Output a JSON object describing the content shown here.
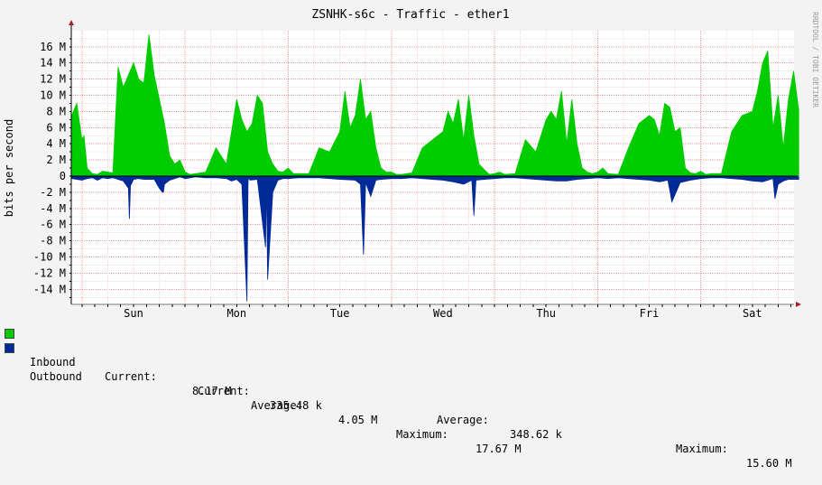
{
  "colors": {
    "inbound": "#00CC00",
    "outbound": "#002A97",
    "canvas": "#F3F3F3",
    "plot": "#FFFFFF",
    "grid_major": "#E8A0A0",
    "grid_minor": "#F0D8D8",
    "axis_arrow": "#A82020",
    "watermark": "#9A9A9A"
  },
  "watermark": "RRDTOOL / TOBI OETIKER",
  "legend": {
    "inbound": {
      "name": "Inbound",
      "current_label": "Current:",
      "current": "8.17 M",
      "average_label": "Average:",
      "average": "4.05 M",
      "maximum_label": "Maximum:",
      "maximum": "17.67 M"
    },
    "outbound": {
      "name": "Outbound",
      "current_label": "Current:",
      "current": "335.48 k",
      "average_label": "Average:",
      "average": "348.62 k",
      "maximum_label": "Maximum:",
      "maximum": "15.60 M"
    }
  },
  "chart_data": {
    "type": "area",
    "title": "ZSNHK-s6c - Traffic - ether1",
    "ylabel": "bits per second",
    "xlabel": "",
    "ylim": [
      -15.5,
      17.5
    ],
    "grid": true,
    "legend_position": "bottom",
    "y_ticks": [
      {
        "value": 16,
        "label": "16 M"
      },
      {
        "value": 14,
        "label": "14 M"
      },
      {
        "value": 12,
        "label": "12 M"
      },
      {
        "value": 10,
        "label": "10 M"
      },
      {
        "value": 8,
        "label": "8 M"
      },
      {
        "value": 6,
        "label": "6 M"
      },
      {
        "value": 4,
        "label": "4 M"
      },
      {
        "value": 2,
        "label": "2 M"
      },
      {
        "value": 0,
        "label": "0"
      },
      {
        "value": -2,
        "label": "-2 M"
      },
      {
        "value": -4,
        "label": "-4 M"
      },
      {
        "value": -6,
        "label": "-6 M"
      },
      {
        "value": -8,
        "label": "-8 M"
      },
      {
        "value": -10,
        "label": "-10 M"
      },
      {
        "value": -12,
        "label": "-12 M"
      },
      {
        "value": -14,
        "label": "-14 M"
      }
    ],
    "x_days": [
      "Sun",
      "Mon",
      "Tue",
      "Wed",
      "Thu",
      "Fri",
      "Sat"
    ],
    "x_range": [
      -0.6,
      6.45
    ],
    "series": [
      {
        "name": "Inbound",
        "x": [
          -0.6,
          -0.55,
          -0.5,
          -0.48,
          -0.45,
          -0.4,
          -0.35,
          -0.3,
          -0.2,
          -0.15,
          -0.1,
          -0.05,
          0.0,
          0.05,
          0.1,
          0.15,
          0.2,
          0.25,
          0.3,
          0.35,
          0.4,
          0.45,
          0.5,
          0.55,
          0.6,
          0.7,
          0.8,
          0.9,
          1.0,
          1.05,
          1.1,
          1.15,
          1.2,
          1.25,
          1.3,
          1.35,
          1.4,
          1.45,
          1.5,
          1.55,
          1.6,
          1.7,
          1.8,
          1.9,
          2.0,
          2.05,
          2.1,
          2.15,
          2.2,
          2.25,
          2.3,
          2.35,
          2.4,
          2.45,
          2.5,
          2.55,
          2.6,
          2.7,
          2.8,
          2.9,
          3.0,
          3.05,
          3.1,
          3.15,
          3.2,
          3.25,
          3.3,
          3.35,
          3.4,
          3.45,
          3.5,
          3.55,
          3.6,
          3.7,
          3.8,
          3.9,
          4.0,
          4.05,
          4.1,
          4.15,
          4.2,
          4.25,
          4.3,
          4.35,
          4.4,
          4.45,
          4.5,
          4.55,
          4.6,
          4.7,
          4.8,
          4.9,
          5.0,
          5.05,
          5.1,
          5.15,
          5.2,
          5.25,
          5.3,
          5.35,
          5.4,
          5.45,
          5.5,
          5.55,
          5.6,
          5.7,
          5.8,
          5.9,
          6.0,
          6.05,
          6.1,
          6.15,
          6.2,
          6.25,
          6.3,
          6.35,
          6.4,
          6.45
        ],
        "values": [
          7.5,
          9.0,
          4.5,
          5.0,
          1.0,
          0.3,
          0.2,
          0.6,
          0.4,
          13.5,
          11.0,
          12.5,
          14.0,
          12.0,
          11.5,
          17.5,
          12.5,
          9.5,
          6.5,
          2.5,
          1.5,
          2.0,
          0.5,
          0.2,
          0.3,
          0.5,
          3.5,
          1.5,
          9.5,
          7.0,
          5.5,
          6.5,
          10.0,
          9.0,
          3.0,
          1.5,
          0.6,
          0.5,
          1.0,
          0.3,
          0.3,
          0.3,
          3.5,
          3.0,
          5.5,
          10.5,
          6.0,
          7.5,
          12.0,
          7.0,
          8.0,
          3.5,
          1.0,
          0.5,
          0.5,
          0.2,
          0.2,
          0.4,
          3.5,
          4.5,
          5.5,
          8.0,
          6.5,
          9.5,
          4.5,
          10.0,
          5.0,
          1.5,
          0.8,
          0.2,
          0.3,
          0.5,
          0.2,
          0.3,
          4.5,
          3.0,
          7.0,
          8.0,
          7.0,
          10.5,
          4.0,
          9.5,
          4.0,
          1.0,
          0.5,
          0.3,
          0.5,
          1.0,
          0.3,
          0.2,
          3.5,
          6.5,
          7.5,
          7.0,
          5.0,
          9.0,
          8.5,
          5.5,
          6.0,
          1.0,
          0.4,
          0.3,
          0.6,
          0.2,
          0.3,
          0.3,
          5.5,
          7.5,
          8.0,
          10.5,
          14.0,
          15.5,
          6.0,
          10.0,
          3.5,
          9.5,
          13.0,
          8.2
        ]
      },
      {
        "name": "Outbound",
        "x": [
          -0.6,
          -0.55,
          -0.5,
          -0.45,
          -0.4,
          -0.35,
          -0.3,
          -0.25,
          -0.2,
          -0.15,
          -0.1,
          -0.05,
          -0.04,
          -0.03,
          0.0,
          0.05,
          0.1,
          0.2,
          0.25,
          0.28,
          0.29,
          0.3,
          0.35,
          0.4,
          0.45,
          0.5,
          0.55,
          0.6,
          0.7,
          0.8,
          0.9,
          0.95,
          1.0,
          1.05,
          1.1,
          1.11,
          1.115,
          1.12,
          1.13,
          1.2,
          1.28,
          1.29,
          1.3,
          1.35,
          1.4,
          1.45,
          1.5,
          1.6,
          1.7,
          1.8,
          1.9,
          2.0,
          2.15,
          2.2,
          2.23,
          2.25,
          2.3,
          2.35,
          2.4,
          2.5,
          2.6,
          2.7,
          2.8,
          2.9,
          3.0,
          3.1,
          3.2,
          3.28,
          3.3,
          3.32,
          3.4,
          3.5,
          3.6,
          3.7,
          3.8,
          3.9,
          4.0,
          4.1,
          4.2,
          4.3,
          4.4,
          4.5,
          4.6,
          4.7,
          4.8,
          4.9,
          5.0,
          5.1,
          5.18,
          5.2,
          5.22,
          5.3,
          5.4,
          5.5,
          5.6,
          5.7,
          5.8,
          5.9,
          6.0,
          6.1,
          6.15,
          6.2,
          6.22,
          6.25,
          6.3,
          6.35,
          6.45
        ],
        "values": [
          -0.3,
          -0.4,
          -0.5,
          -0.3,
          -0.2,
          -0.5,
          -0.2,
          -0.3,
          -0.2,
          -0.4,
          -0.6,
          -1.5,
          -5.3,
          -1.2,
          -0.4,
          -0.3,
          -0.4,
          -0.4,
          -1.5,
          -2.0,
          -2.0,
          -1.0,
          -0.5,
          -0.3,
          -0.1,
          -0.3,
          -0.2,
          -0.1,
          -0.2,
          -0.2,
          -0.3,
          -0.6,
          -0.4,
          -1.0,
          -15.5,
          -0.8,
          -0.3,
          -0.3,
          -0.5,
          -0.4,
          -8.8,
          -0.5,
          -12.8,
          -2.0,
          -0.5,
          -0.3,
          -0.3,
          -0.2,
          -0.2,
          -0.2,
          -0.3,
          -0.4,
          -0.5,
          -1.0,
          -9.7,
          -0.8,
          -2.5,
          -0.5,
          -0.4,
          -0.3,
          -0.3,
          -0.2,
          -0.3,
          -0.4,
          -0.5,
          -0.7,
          -1.0,
          -0.5,
          -4.9,
          -0.5,
          -0.4,
          -0.3,
          -0.2,
          -0.2,
          -0.3,
          -0.4,
          -0.5,
          -0.6,
          -0.6,
          -0.4,
          -0.3,
          -0.2,
          -0.3,
          -0.2,
          -0.3,
          -0.4,
          -0.5,
          -0.7,
          -0.5,
          -1.8,
          -3.2,
          -0.8,
          -0.5,
          -0.3,
          -0.2,
          -0.2,
          -0.3,
          -0.4,
          -0.6,
          -0.7,
          -0.5,
          -0.3,
          -2.8,
          -1.0,
          -0.6,
          -0.4,
          -0.4
        ]
      }
    ]
  }
}
